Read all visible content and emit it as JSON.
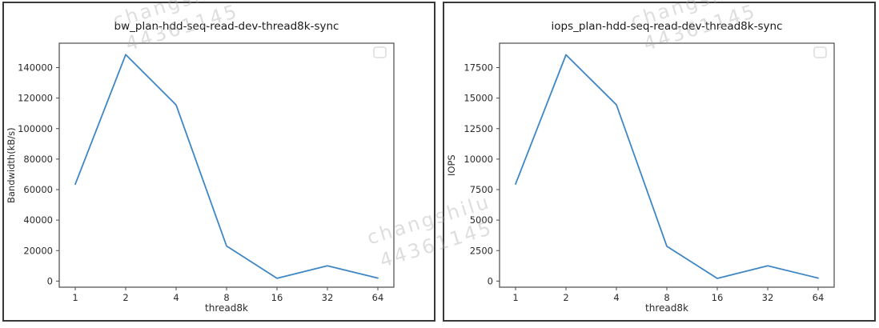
{
  "watermark": {
    "line1": "changshilu",
    "line2": "44361145"
  },
  "chart_data": [
    {
      "type": "line",
      "title": "bw_plan-hdd-seq-read-dev-thread8k-sync",
      "xlabel": "thread8k",
      "ylabel": "Bandwidth(kB/s)",
      "x_tick_labels": [
        "1",
        "2",
        "4",
        "8",
        "16",
        "32",
        "64"
      ],
      "y_ticks": [
        0,
        20000,
        40000,
        60000,
        80000,
        100000,
        120000,
        140000
      ],
      "y_min": -4000,
      "y_max": 156000,
      "series": [
        {
          "name": "",
          "x": [
            1,
            2,
            4,
            8,
            16,
            32,
            64
          ],
          "values": [
            63500,
            148500,
            115500,
            23000,
            1800,
            10000,
            2000
          ]
        }
      ],
      "legend": {
        "position": "upper right",
        "entries": []
      },
      "grid": false,
      "line_color": "#3e86c6",
      "axis_color": "#4a4a4a"
    },
    {
      "type": "line",
      "title": "iops_plan-hdd-seq-read-dev-thread8k-sync",
      "xlabel": "thread8k",
      "ylabel": "IOPS",
      "x_tick_labels": [
        "1",
        "2",
        "4",
        "8",
        "16",
        "32",
        "64"
      ],
      "y_ticks": [
        0,
        2500,
        5000,
        7500,
        10000,
        12500,
        15000,
        17500
      ],
      "y_min": -500,
      "y_max": 19500,
      "series": [
        {
          "name": "",
          "x": [
            1,
            2,
            4,
            8,
            16,
            32,
            64
          ],
          "values": [
            7950,
            18550,
            14450,
            2850,
            220,
            1250,
            250
          ]
        }
      ],
      "legend": {
        "position": "upper right",
        "entries": []
      },
      "grid": false,
      "line_color": "#3e86c6",
      "axis_color": "#4a4a4a"
    }
  ]
}
